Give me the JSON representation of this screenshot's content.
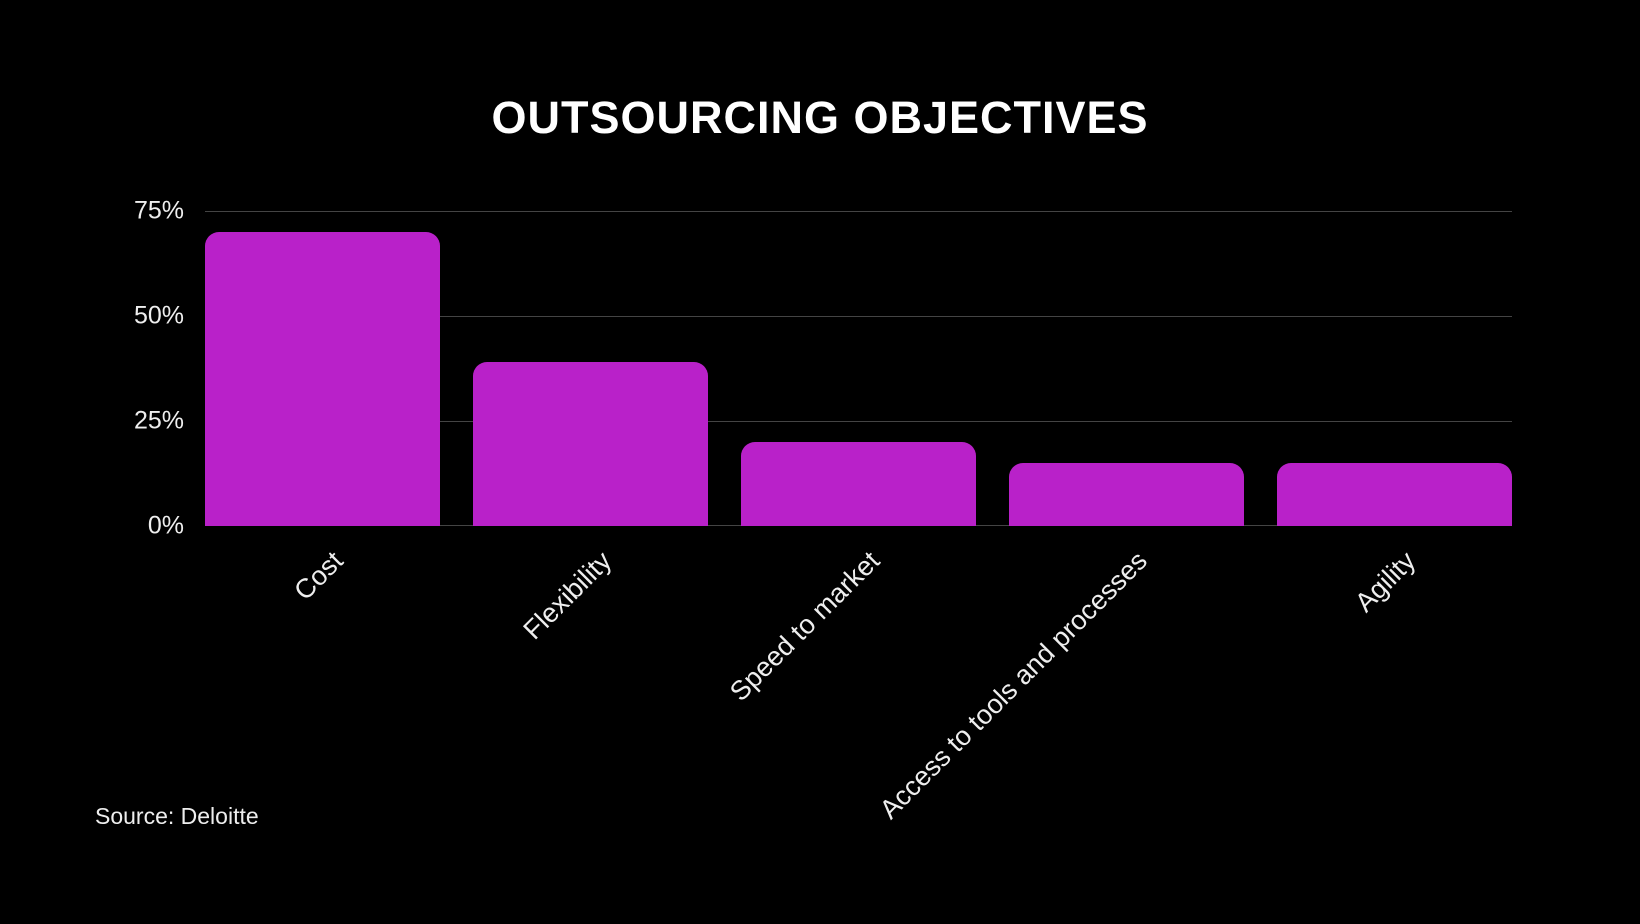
{
  "title": "OUTSOURCING OBJECTIVES",
  "source": "Source: Deloitte",
  "colors": {
    "background": "#000000",
    "bar": "#B921C9",
    "grid": "#444444",
    "text": "#FFFFFF"
  },
  "yaxis": {
    "ticks": [
      "0%",
      "25%",
      "50%",
      "75%"
    ]
  },
  "chart_data": {
    "type": "bar",
    "title": "OUTSOURCING OBJECTIVES",
    "categories": [
      "Cost",
      "Flexibility",
      "Speed to market",
      "Access to tools and processes",
      "Agility"
    ],
    "values": [
      70,
      39,
      20,
      15,
      15
    ],
    "xlabel": "",
    "ylabel": "",
    "ylim": [
      0,
      75
    ],
    "yticks": [
      0,
      25,
      50,
      75
    ],
    "ytick_labels": [
      "0%",
      "25%",
      "50%",
      "75%"
    ],
    "grid": true,
    "legend": "none",
    "unit": "%",
    "source": "Source: Deloitte"
  }
}
